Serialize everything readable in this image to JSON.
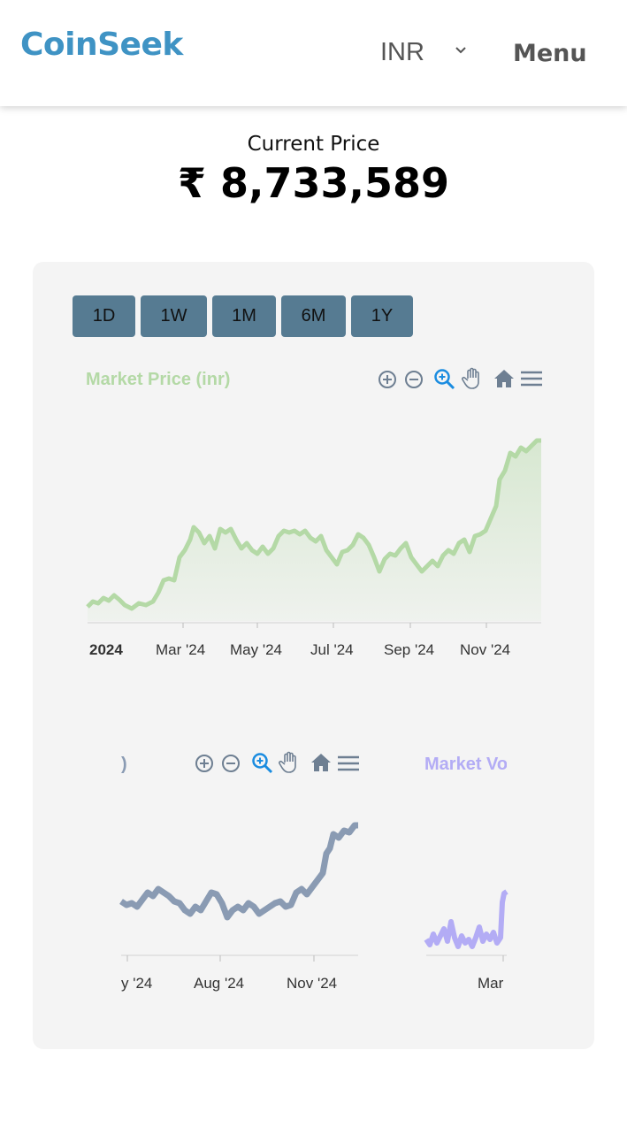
{
  "header": {
    "logo": "CoinSeek",
    "currency": "INR",
    "menu_label": "Menu"
  },
  "price": {
    "label": "Current Price",
    "value": "₹ 8,733,589"
  },
  "ranges": [
    "1D",
    "1W",
    "1M",
    "6M",
    "1Y"
  ],
  "chart1": {
    "title": "Market Price (inr)",
    "color": "#b4d9a6",
    "x_labels": [
      "2024",
      "Mar '24",
      "May '24",
      "Jul '24",
      "Sep '24",
      "Nov '24"
    ],
    "toolbar": [
      "zoom-in-icon",
      "zoom-out-icon",
      "selection-zoom-icon",
      "pan-hand-icon",
      "home-icon",
      "menu-icon"
    ]
  },
  "chart2": {
    "title_fragment": ")",
    "color": "#8a9bb3",
    "x_labels": [
      "y '24",
      "Aug '24",
      "Nov '24"
    ]
  },
  "chart3": {
    "title_fragment": "Market Vo",
    "color": "#b3acf5",
    "x_labels": [
      "Mar"
    ]
  }
}
